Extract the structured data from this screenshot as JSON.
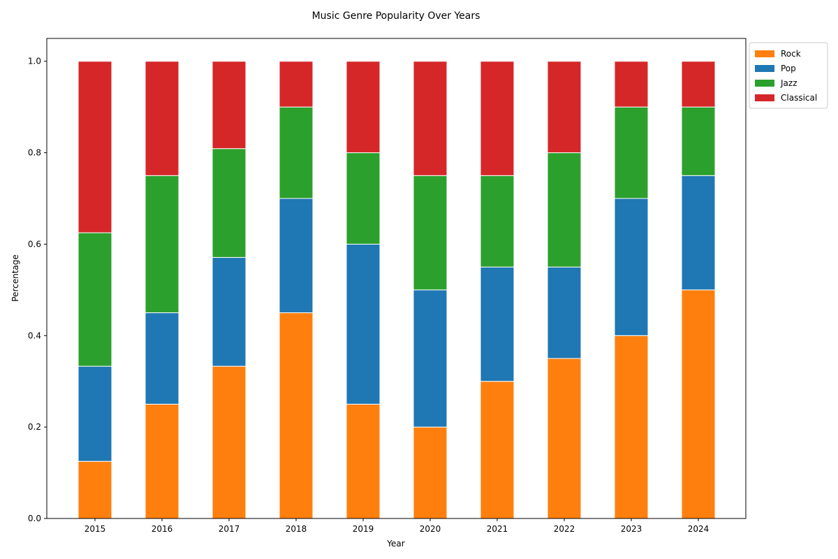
{
  "chart_data": {
    "type": "bar",
    "stacked": true,
    "title": "Music Genre Popularity Over Years",
    "xlabel": "Year",
    "ylabel": "Percentage",
    "ylim": [
      0,
      1.05
    ],
    "yticks": [
      "0.0",
      "0.2",
      "0.4",
      "0.6",
      "0.8",
      "1.0"
    ],
    "grid": false,
    "legend_position": "outside-top-right",
    "categories": [
      "2015",
      "2016",
      "2017",
      "2018",
      "2019",
      "2020",
      "2021",
      "2022",
      "2023",
      "2024"
    ],
    "series": [
      {
        "name": "Rock",
        "color": "#ff7f0e",
        "values": [
          0.125,
          0.25,
          0.333,
          0.45,
          0.25,
          0.2,
          0.3,
          0.35,
          0.4,
          0.5
        ]
      },
      {
        "name": "Pop",
        "color": "#1f77b4",
        "values": [
          0.208,
          0.2,
          0.238,
          0.25,
          0.35,
          0.3,
          0.25,
          0.2,
          0.3,
          0.25
        ]
      },
      {
        "name": "Jazz",
        "color": "#2ca02c",
        "values": [
          0.292,
          0.3,
          0.238,
          0.2,
          0.2,
          0.25,
          0.2,
          0.25,
          0.2,
          0.15
        ]
      },
      {
        "name": "Classical",
        "color": "#d62728",
        "values": [
          0.375,
          0.25,
          0.191,
          0.1,
          0.2,
          0.25,
          0.25,
          0.2,
          0.1,
          0.1
        ]
      }
    ]
  }
}
